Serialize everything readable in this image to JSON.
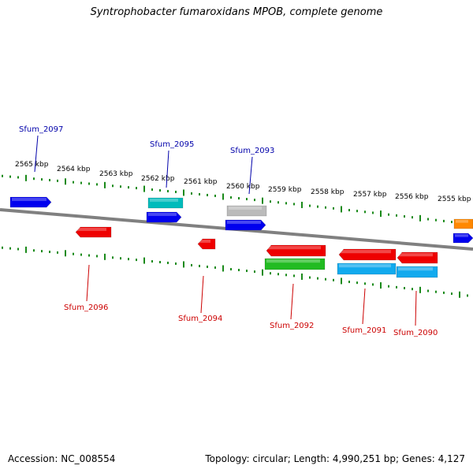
{
  "title": "Syntrophobacter fumaroxidans MPOB, complete genome",
  "footer": {
    "accession": "Accession: NC_008554",
    "summary": "Topology: circular; Length: 4,990,251 bp; Genes: 4,127"
  },
  "scale_labels": [
    "2565 kbp",
    "2564 kbp",
    "2563 kbp",
    "2562 kbp",
    "2561 kbp",
    "2560 kbp",
    "2559 kbp",
    "2558 kbp",
    "2557 kbp",
    "2556 kbp",
    "2555 kbp"
  ],
  "gene_labels_top": [
    "Sfum_2097",
    "Sfum_2095",
    "Sfum_2093"
  ],
  "gene_labels_bottom": [
    "Sfum_2096",
    "Sfum_2094",
    "Sfum_2092",
    "Sfum_2091",
    "Sfum_2090"
  ],
  "colors": {
    "tick": "#1a8a1a",
    "backbone": "#808080",
    "label_top": "#0000aa",
    "label_bottom": "#cc0000",
    "blue": "#0000ee",
    "cyan": "#00bbbb",
    "gray": "#bbbbbb",
    "red": "#ee0000",
    "green": "#22bb22",
    "lightblue": "#11aaee",
    "orange": "#ff8800"
  }
}
